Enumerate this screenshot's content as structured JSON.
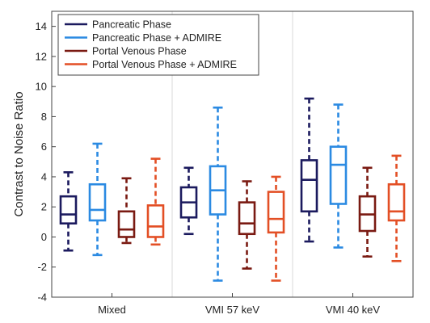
{
  "chart_data": {
    "type": "box",
    "title": "",
    "xlabel": "",
    "ylabel": "Contrast to Noise Ratio",
    "ylim": [
      -4,
      15
    ],
    "yticks": [
      -4,
      -2,
      0,
      2,
      4,
      6,
      8,
      10,
      12,
      14
    ],
    "grid": false,
    "legend_position": "top-left",
    "categories": [
      "Mixed",
      "VMI 57 keV",
      "VMI 40 keV"
    ],
    "series": [
      {
        "name": "Pancreatic Phase",
        "color": "#1b1a5e",
        "boxes": [
          {
            "whisker_low": -0.9,
            "q1": 0.9,
            "median": 1.5,
            "q3": 2.7,
            "whisker_high": 4.3
          },
          {
            "whisker_low": 0.2,
            "q1": 1.3,
            "median": 2.3,
            "q3": 3.3,
            "whisker_high": 4.6
          },
          {
            "whisker_low": -0.3,
            "q1": 1.7,
            "median": 3.8,
            "q3": 5.1,
            "whisker_high": 9.2
          }
        ]
      },
      {
        "name": "Pancreatic Phase + ADMIRE",
        "color": "#2b8ae2",
        "boxes": [
          {
            "whisker_low": -1.2,
            "q1": 1.1,
            "median": 1.8,
            "q3": 3.5,
            "whisker_high": 6.2
          },
          {
            "whisker_low": -2.9,
            "q1": 1.5,
            "median": 3.1,
            "q3": 4.7,
            "whisker_high": 8.6
          },
          {
            "whisker_low": -0.7,
            "q1": 2.2,
            "median": 4.8,
            "q3": 6.0,
            "whisker_high": 8.8
          }
        ]
      },
      {
        "name": "Portal Venous Phase",
        "color": "#7a1a12",
        "boxes": [
          {
            "whisker_low": -0.4,
            "q1": 0.0,
            "median": 0.5,
            "q3": 1.7,
            "whisker_high": 3.9
          },
          {
            "whisker_low": -2.1,
            "q1": 0.2,
            "median": 0.9,
            "q3": 2.3,
            "whisker_high": 3.7
          },
          {
            "whisker_low": -1.3,
            "q1": 0.4,
            "median": 1.5,
            "q3": 2.7,
            "whisker_high": 4.6
          }
        ]
      },
      {
        "name": "Portal Venous Phase + ADMIRE",
        "color": "#e34f25",
        "boxes": [
          {
            "whisker_low": -0.5,
            "q1": 0.0,
            "median": 0.7,
            "q3": 2.1,
            "whisker_high": 5.2
          },
          {
            "whisker_low": -2.9,
            "q1": 0.3,
            "median": 1.2,
            "q3": 3.0,
            "whisker_high": 4.0
          },
          {
            "whisker_low": -1.6,
            "q1": 1.1,
            "median": 1.7,
            "q3": 3.5,
            "whisker_high": 5.4
          }
        ]
      }
    ]
  }
}
